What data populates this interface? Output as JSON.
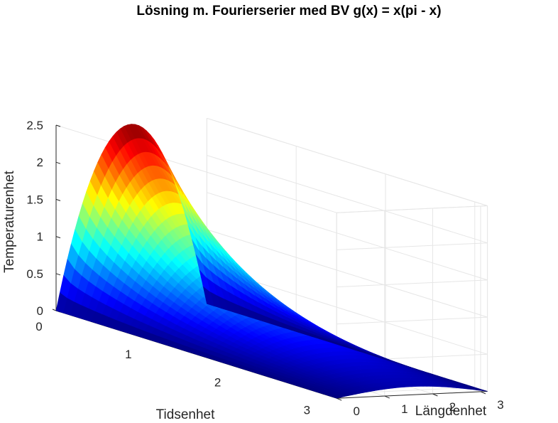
{
  "chart_data": {
    "type": "surface3d",
    "title": "Lösning m. Fourierserier med BV g(x) = x(pi - x)",
    "xlabel": "Tidsenhet",
    "ylabel": "Längdenhet",
    "zlabel": "Temperaturenhet",
    "x_ticks": [
      "0",
      "1",
      "2",
      "3"
    ],
    "y_ticks": [
      "0",
      "1",
      "2",
      "3"
    ],
    "z_ticks": [
      "0",
      "0.5",
      "1",
      "1.5",
      "2",
      "2.5"
    ],
    "xlim": [
      0,
      3.14159
    ],
    "ylim": [
      0,
      3.14159
    ],
    "zlim": [
      0,
      2.5
    ],
    "function": "u(t,x) = sum over odd n of 8/(pi n^3) * sin(n x) * exp(-n^2 t); u(0,x) = x(pi - x)",
    "grid": true,
    "colormap": "jet",
    "peak": {
      "x": 0,
      "y": 1.5708,
      "z": 2.467
    }
  }
}
